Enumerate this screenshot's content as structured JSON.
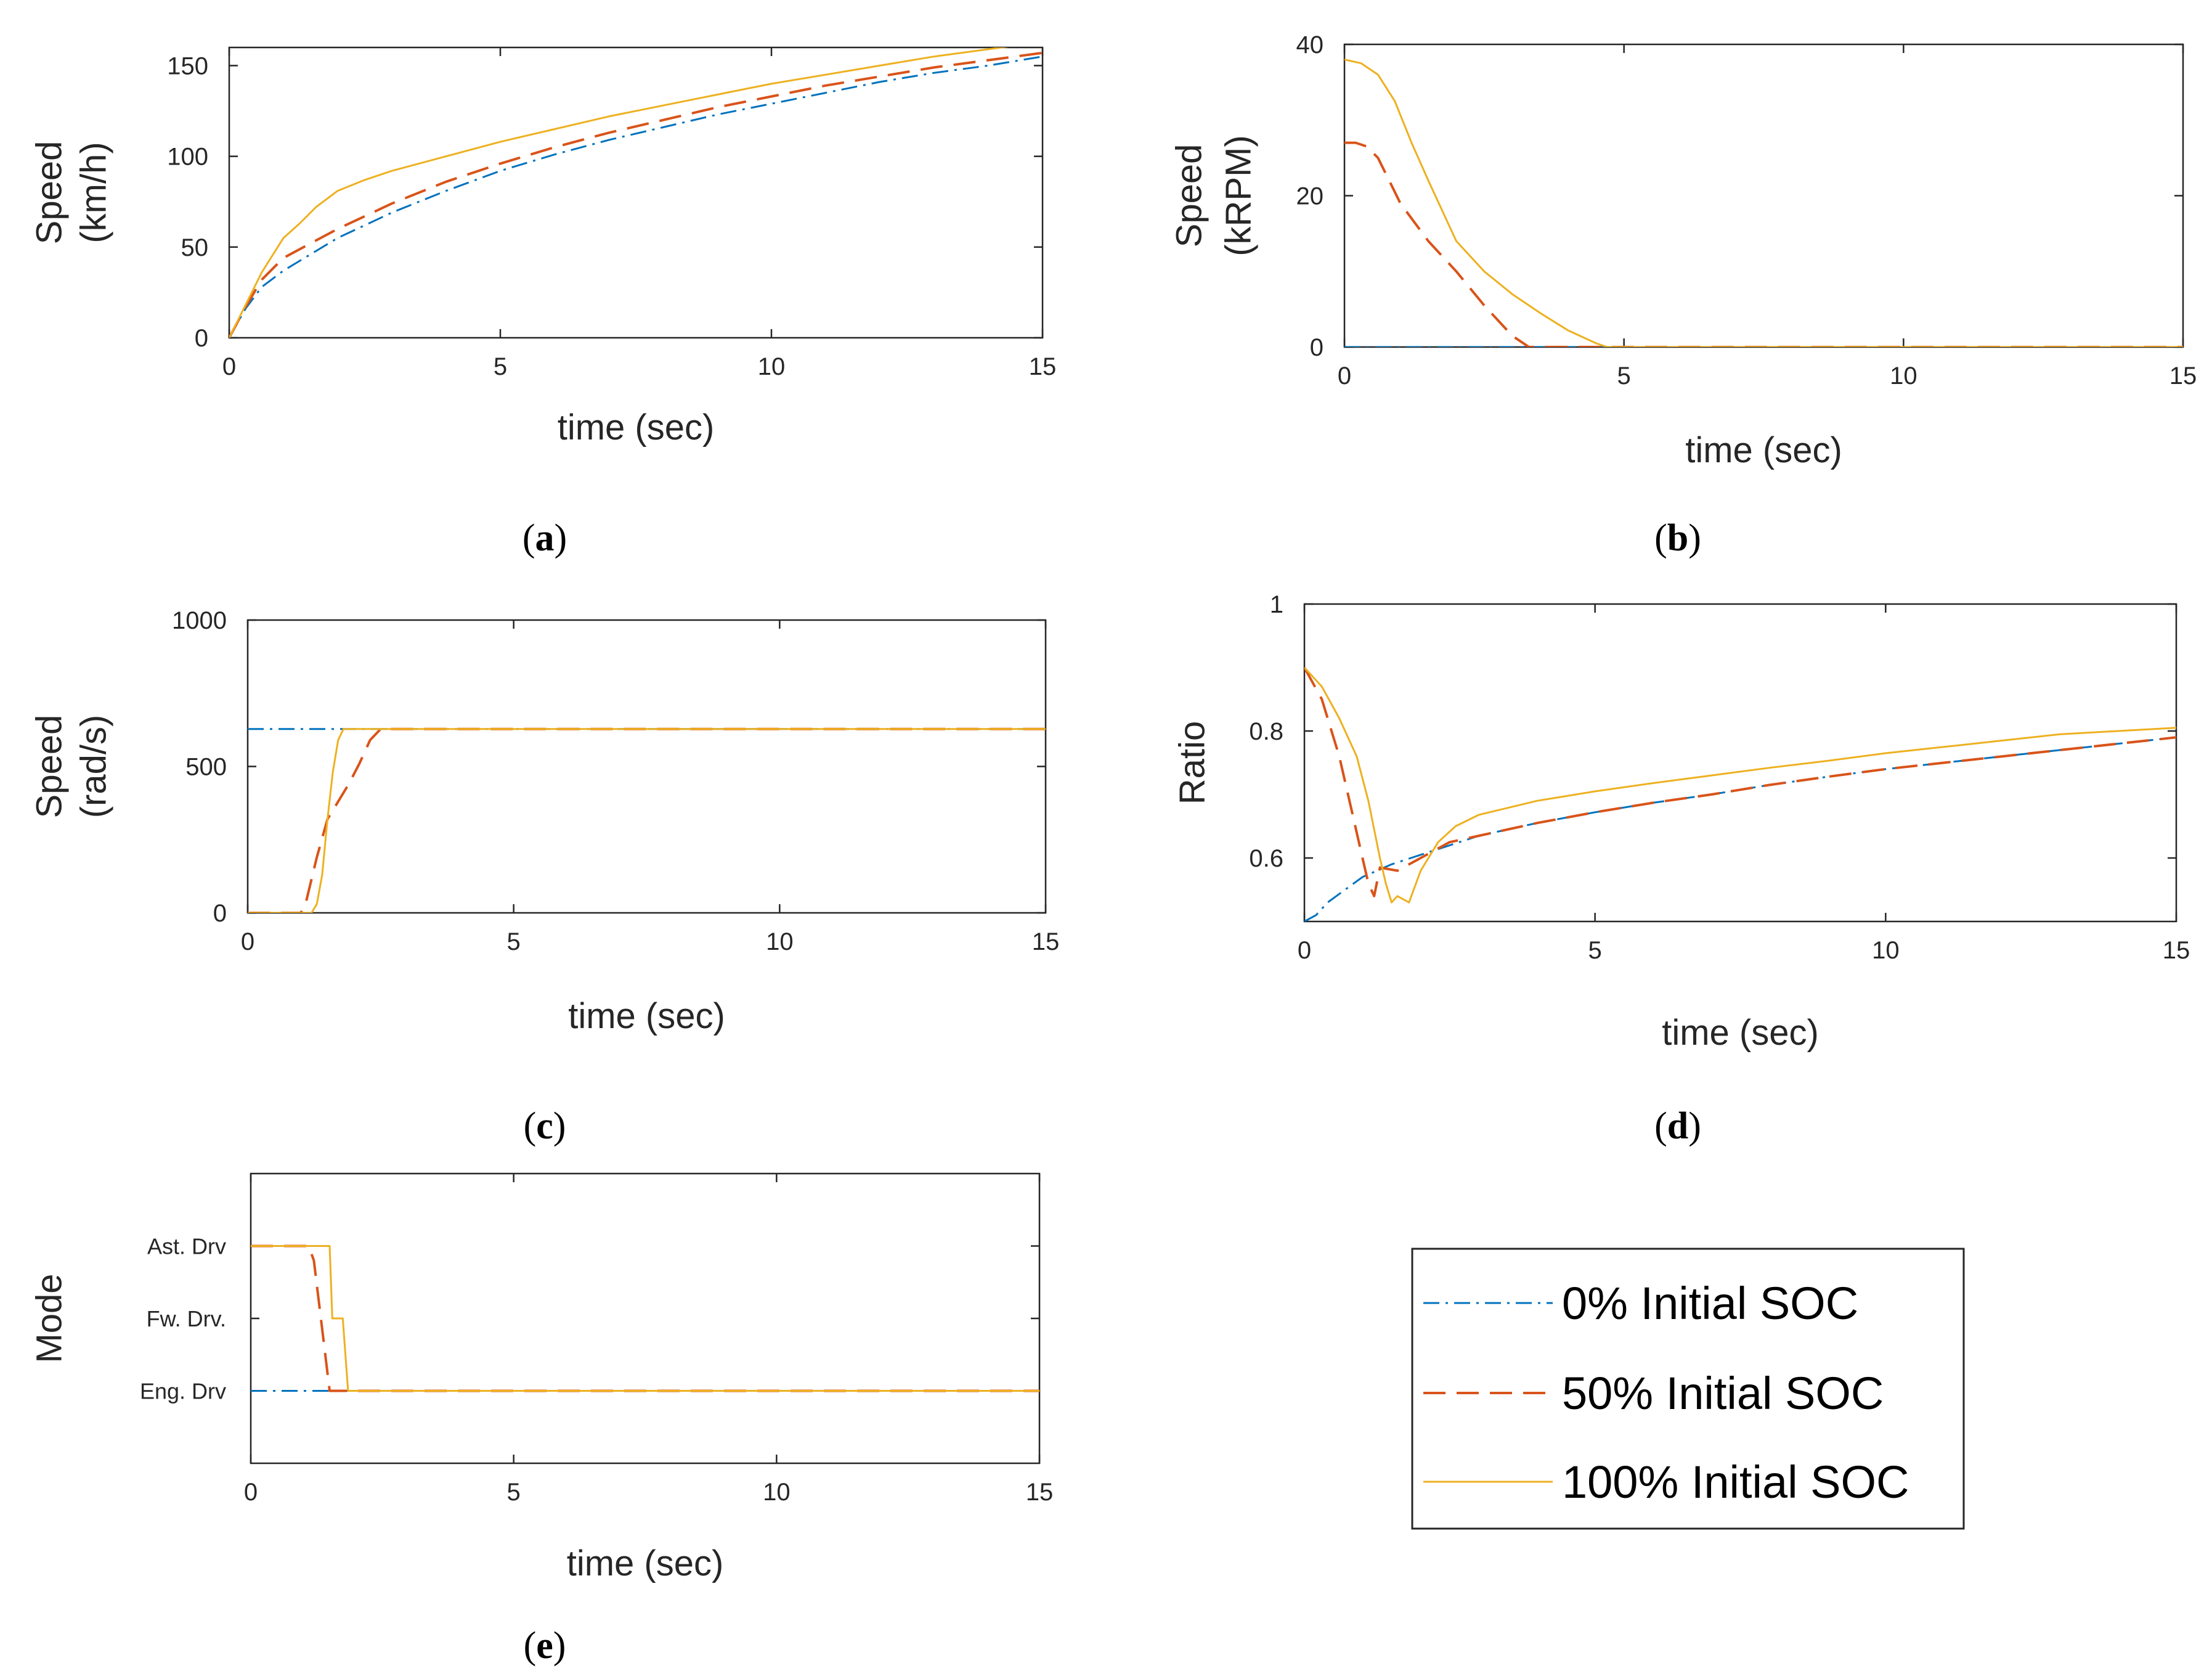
{
  "legend": {
    "entries": [
      {
        "label": "0% Initial SOC",
        "color": "#0072BD",
        "dash": "dashdot"
      },
      {
        "label": "50% Initial SOC",
        "color": "#D95319",
        "dash": "dashed"
      },
      {
        "label": "100% Initial SOC",
        "color": "#EDB120",
        "dash": "solid"
      }
    ]
  },
  "panel_labels": {
    "a": {
      "open": "(",
      "letter": "a",
      "close": ")"
    },
    "b": {
      "open": "(",
      "letter": "b",
      "close": ")"
    },
    "c": {
      "open": "(",
      "letter": "c",
      "close": ")"
    },
    "d": {
      "open": "(",
      "letter": "d",
      "close": ")"
    },
    "e": {
      "open": "(",
      "letter": "e",
      "close": ")"
    }
  },
  "chart_data": [
    {
      "id": "a",
      "type": "line",
      "xlabel": "time (sec)",
      "ylabel": [
        "Speed",
        "(km/h)"
      ],
      "xlim": [
        0,
        15
      ],
      "ylim": [
        0,
        160
      ],
      "xticks": [
        0,
        5,
        10,
        15
      ],
      "yticks": [
        0,
        50,
        100,
        150
      ],
      "series": [
        {
          "name": "0% Initial SOC",
          "x": [
            0,
            0.3,
            0.6,
            1,
            1.5,
            2,
            3,
            4,
            5,
            6,
            7,
            8,
            9,
            10,
            11,
            12,
            13,
            14,
            15
          ],
          "y": [
            0,
            16,
            28,
            37,
            46,
            55,
            69,
            81,
            92,
            101,
            109,
            116,
            123,
            129,
            135,
            141,
            146,
            150,
            155
          ]
        },
        {
          "name": "50% Initial SOC",
          "x": [
            0,
            0.3,
            0.6,
            1,
            1.5,
            2,
            3,
            4,
            5,
            6,
            7,
            8,
            9,
            10,
            11,
            12,
            13,
            14,
            15
          ],
          "y": [
            0,
            17,
            32,
            44,
            52,
            60,
            74,
            86,
            96,
            105,
            113,
            120,
            127,
            133,
            139,
            144,
            149,
            153,
            157
          ]
        },
        {
          "name": "100% Initial SOC",
          "x": [
            0,
            0.3,
            0.6,
            1,
            1.3,
            1.6,
            2,
            2.5,
            3,
            4,
            5,
            6,
            7,
            8,
            9,
            10,
            11,
            12,
            13,
            14,
            15
          ],
          "y": [
            0,
            18,
            36,
            55,
            63,
            72,
            81,
            87,
            92,
            100,
            108,
            115,
            122,
            128,
            134,
            140,
            145,
            150,
            155,
            159,
            163
          ]
        }
      ]
    },
    {
      "id": "b",
      "type": "line",
      "xlabel": "time (sec)",
      "ylabel": [
        "Speed",
        "(kRPM)"
      ],
      "xlim": [
        0,
        15
      ],
      "ylim": [
        0,
        40
      ],
      "xticks": [
        0,
        5,
        10,
        15
      ],
      "yticks": [
        0,
        20,
        40
      ],
      "series": [
        {
          "name": "0% Initial SOC",
          "x": [
            0,
            15
          ],
          "y": [
            0,
            0
          ]
        },
        {
          "name": "50% Initial SOC",
          "x": [
            0,
            0.2,
            0.4,
            0.6,
            0.8,
            1,
            1.5,
            2,
            2.5,
            3,
            3.3,
            15
          ],
          "y": [
            27,
            27,
            26.5,
            25,
            22,
            19,
            14,
            10,
            5.5,
            1.5,
            0,
            0
          ]
        },
        {
          "name": "100% Initial SOC",
          "x": [
            0,
            0.3,
            0.6,
            0.9,
            1.2,
            1.5,
            2,
            2.5,
            3,
            3.5,
            4,
            4.5,
            4.7,
            15
          ],
          "y": [
            38,
            37.5,
            36,
            32.5,
            27,
            22,
            14,
            10,
            7,
            4.5,
            2.2,
            0.5,
            0,
            0
          ]
        }
      ]
    },
    {
      "id": "c",
      "type": "line",
      "xlabel": "time (sec)",
      "ylabel": [
        "Speed",
        "(rad/s)"
      ],
      "xlim": [
        0,
        15
      ],
      "ylim": [
        0,
        1000
      ],
      "xticks": [
        0,
        5,
        10,
        15
      ],
      "yticks": [
        0,
        500,
        1000
      ],
      "series": [
        {
          "name": "0% Initial SOC",
          "x": [
            0,
            15
          ],
          "y": [
            628,
            628
          ]
        },
        {
          "name": "50% Initial SOC",
          "x": [
            0,
            1,
            1.1,
            1.3,
            1.5,
            1.7,
            1.9,
            2.1,
            2.3,
            2.5,
            15
          ],
          "y": [
            0,
            0,
            40,
            190,
            320,
            380,
            440,
            510,
            590,
            628,
            628
          ]
        },
        {
          "name": "100% Initial SOC",
          "x": [
            0,
            1.2,
            1.3,
            1.4,
            1.5,
            1.6,
            1.7,
            1.8,
            15
          ],
          "y": [
            0,
            0,
            30,
            130,
            320,
            480,
            590,
            628,
            628
          ]
        }
      ]
    },
    {
      "id": "d",
      "type": "line",
      "xlabel": "time (sec)",
      "ylabel": [
        "Ratio"
      ],
      "xlim": [
        0,
        15
      ],
      "ylim": [
        0.5,
        1
      ],
      "xticks": [
        0,
        5,
        10,
        15
      ],
      "yticks": [
        0.6,
        0.8,
        1
      ],
      "series": [
        {
          "name": "0% Initial SOC",
          "x": [
            0,
            0.2,
            0.4,
            0.7,
            1,
            1.5,
            2,
            2.5,
            3,
            4,
            5,
            6,
            7,
            8,
            9,
            10,
            11,
            12,
            13,
            14,
            15
          ],
          "y": [
            0.5,
            0.51,
            0.53,
            0.55,
            0.57,
            0.59,
            0.605,
            0.62,
            0.635,
            0.655,
            0.672,
            0.687,
            0.7,
            0.715,
            0.728,
            0.74,
            0.75,
            0.76,
            0.77,
            0.78,
            0.79
          ]
        },
        {
          "name": "50% Initial SOC",
          "x": [
            0,
            0.3,
            0.6,
            0.8,
            1,
            1.1,
            1.2,
            1.3,
            1.6,
            2,
            2.5,
            3,
            4,
            5,
            6,
            7,
            8,
            9,
            10,
            11,
            12,
            13,
            14,
            15
          ],
          "y": [
            0.9,
            0.85,
            0.76,
            0.68,
            0.6,
            0.56,
            0.54,
            0.585,
            0.58,
            0.6,
            0.625,
            0.635,
            0.655,
            0.672,
            0.687,
            0.7,
            0.715,
            0.728,
            0.74,
            0.75,
            0.76,
            0.77,
            0.78,
            0.79
          ]
        },
        {
          "name": "100% Initial SOC",
          "x": [
            0,
            0.3,
            0.6,
            0.9,
            1.1,
            1.3,
            1.4,
            1.5,
            1.6,
            1.8,
            2,
            2.3,
            2.6,
            3,
            4,
            5,
            6,
            7,
            8,
            9,
            10,
            11,
            12,
            13,
            14,
            15
          ],
          "y": [
            0.9,
            0.87,
            0.82,
            0.76,
            0.69,
            0.6,
            0.56,
            0.53,
            0.54,
            0.53,
            0.58,
            0.625,
            0.65,
            0.668,
            0.69,
            0.705,
            0.718,
            0.73,
            0.742,
            0.753,
            0.765,
            0.775,
            0.785,
            0.795,
            0.8,
            0.805
          ]
        }
      ]
    },
    {
      "id": "e",
      "type": "line",
      "xlabel": "time (sec)",
      "ylabel": [
        "Mode"
      ],
      "xlim": [
        0,
        15
      ],
      "ylim": [
        0,
        4
      ],
      "xticks": [
        0,
        5,
        10,
        15
      ],
      "y_categories": [
        {
          "value": 1,
          "label": "Eng. Drv"
        },
        {
          "value": 2,
          "label": "Fw. Drv."
        },
        {
          "value": 3,
          "label": "Ast. Drv"
        }
      ],
      "series": [
        {
          "name": "0% Initial SOC",
          "x": [
            0,
            15
          ],
          "y": [
            1,
            1
          ]
        },
        {
          "name": "50% Initial SOC",
          "x": [
            0,
            1.1,
            1.2,
            1.5,
            15
          ],
          "y": [
            3,
            3,
            2.8,
            1,
            1
          ]
        },
        {
          "name": "100% Initial SOC",
          "x": [
            0,
            1.5,
            1.55,
            1.7,
            1.75,
            1.85,
            15
          ],
          "y": [
            3,
            3,
            2,
            2,
            2,
            1,
            1
          ]
        }
      ]
    }
  ]
}
